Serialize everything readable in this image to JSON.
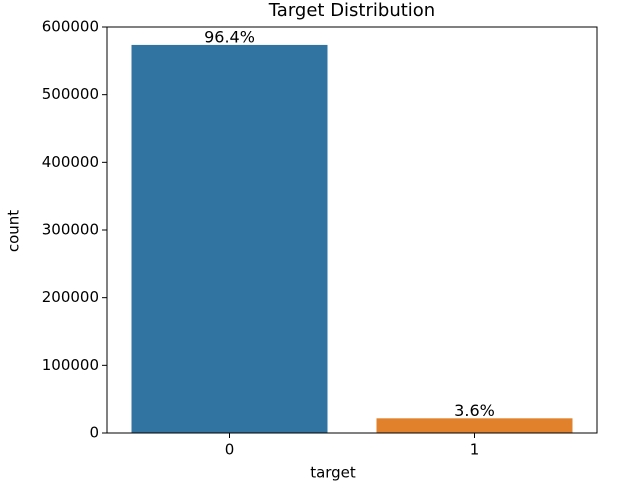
{
  "chart_data": {
    "type": "bar",
    "title": "Target Distribution",
    "x_label": "target",
    "y_label": "count",
    "categories": [
      "0",
      "1"
    ],
    "values": [
      573518,
      21694
    ],
    "colors": [
      "#3274a1",
      "#e1812c"
    ],
    "annotations": [
      "96.4%",
      "3.6%"
    ],
    "ylim": [
      0,
      600000
    ],
    "yticks": [
      0,
      100000,
      200000,
      300000,
      400000,
      500000,
      600000
    ],
    "grid": false
  }
}
